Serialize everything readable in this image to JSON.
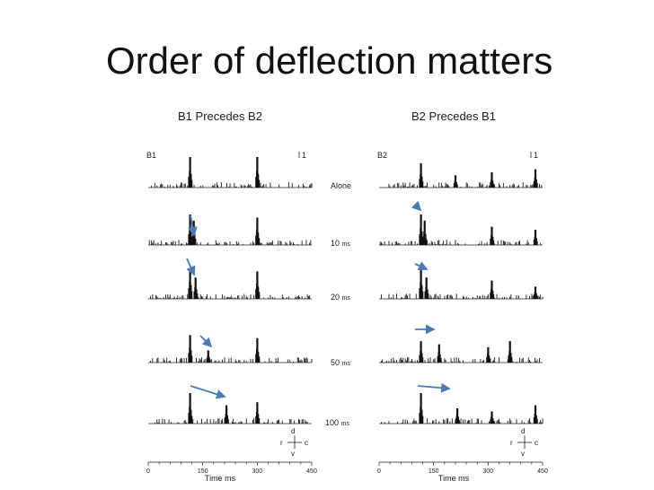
{
  "slide": {
    "title": "Order of deflection matters"
  },
  "figure": {
    "left_title": "B1 Precedes B2",
    "right_title": "B2 Precedes B1",
    "left_label": "B1",
    "right_label": "B2",
    "scale_mark": "1",
    "conditions": [
      {
        "label": "Alone",
        "unit": ""
      },
      {
        "label": "10",
        "unit": "ms"
      },
      {
        "label": "20",
        "unit": "ms"
      },
      {
        "label": "50",
        "unit": "ms"
      },
      {
        "label": "100",
        "unit": "ms"
      }
    ],
    "axis_ticks": [
      "0",
      "150",
      "300",
      "450"
    ],
    "axis_title": "Time ms",
    "direction_key": {
      "up": "d",
      "left": "r",
      "right": "c",
      "down": "v"
    },
    "arrow_color": "#4a7ab8"
  },
  "chart_data": {
    "type": "bar",
    "xlim": [
      0,
      450
    ],
    "xlabel": "Time ms",
    "x_ticks": [
      0,
      150,
      300,
      450
    ],
    "panels": [
      {
        "title": "B1 Precedes B2",
        "channel": "B1",
        "rows": [
          {
            "condition": "Alone",
            "peaks": [
              [
                115,
                1.0
              ],
              [
                300,
                1.0
              ]
            ]
          },
          {
            "condition": "10 ms",
            "peaks": [
              [
                115,
                1.0
              ],
              [
                125,
                0.8
              ],
              [
                300,
                0.9
              ]
            ]
          },
          {
            "condition": "20 ms",
            "peaks": [
              [
                115,
                1.0
              ],
              [
                130,
                0.7
              ],
              [
                300,
                0.9
              ]
            ]
          },
          {
            "condition": "50 ms",
            "peaks": [
              [
                115,
                0.9
              ],
              [
                165,
                0.4
              ],
              [
                300,
                0.8
              ]
            ]
          },
          {
            "condition": "100 ms",
            "peaks": [
              [
                115,
                1.0
              ],
              [
                215,
                0.6
              ],
              [
                300,
                0.7
              ]
            ]
          }
        ]
      },
      {
        "title": "B2 Precedes B1",
        "channel": "B2",
        "rows": [
          {
            "condition": "Alone",
            "peaks": [
              [
                115,
                0.8
              ],
              [
                210,
                0.4
              ],
              [
                310,
                0.5
              ],
              [
                430,
                0.6
              ]
            ]
          },
          {
            "condition": "10 ms",
            "peaks": [
              [
                115,
                1.0
              ],
              [
                125,
                0.8
              ],
              [
                310,
                0.6
              ],
              [
                430,
                0.5
              ]
            ]
          },
          {
            "condition": "20 ms",
            "peaks": [
              [
                115,
                1.0
              ],
              [
                130,
                0.7
              ],
              [
                310,
                0.6
              ],
              [
                430,
                0.4
              ]
            ]
          },
          {
            "condition": "50 ms",
            "peaks": [
              [
                115,
                0.7
              ],
              [
                165,
                0.6
              ],
              [
                300,
                0.5
              ],
              [
                360,
                0.7
              ]
            ]
          },
          {
            "condition": "100 ms",
            "peaks": [
              [
                115,
                1.0
              ],
              [
                215,
                0.5
              ],
              [
                310,
                0.4
              ],
              [
                430,
                0.6
              ]
            ]
          }
        ]
      }
    ]
  }
}
